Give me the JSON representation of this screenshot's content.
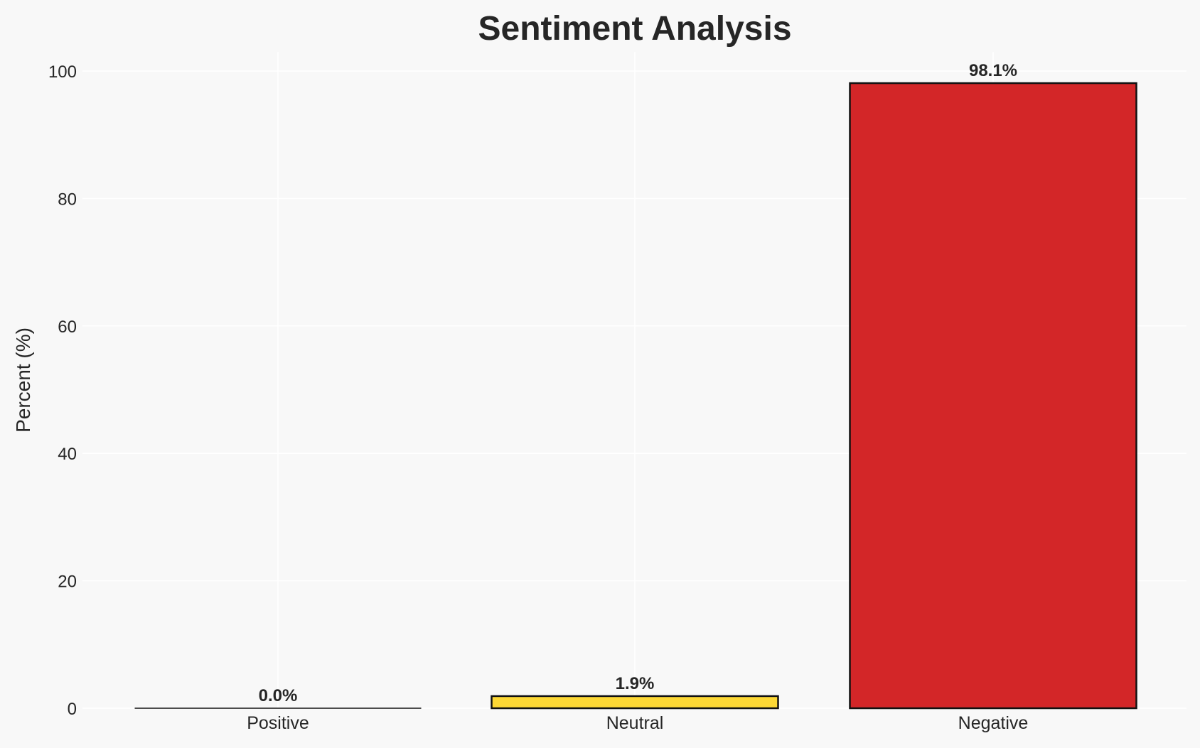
{
  "chart_data": {
    "type": "bar",
    "title": "Sentiment Analysis",
    "xlabel": "",
    "ylabel": "Percent (%)",
    "categories": [
      "Positive",
      "Neutral",
      "Negative"
    ],
    "values": [
      0.0,
      1.9,
      98.1
    ],
    "data_labels": [
      "0.0%",
      "1.9%",
      "98.1%"
    ],
    "colors": [
      "#2ca02c",
      "#fdd835",
      "#d32628"
    ],
    "ylim": [
      0,
      103
    ],
    "yticks": [
      0,
      20,
      40,
      60,
      80,
      100
    ],
    "grid": true,
    "background": "#f8f8f8"
  }
}
